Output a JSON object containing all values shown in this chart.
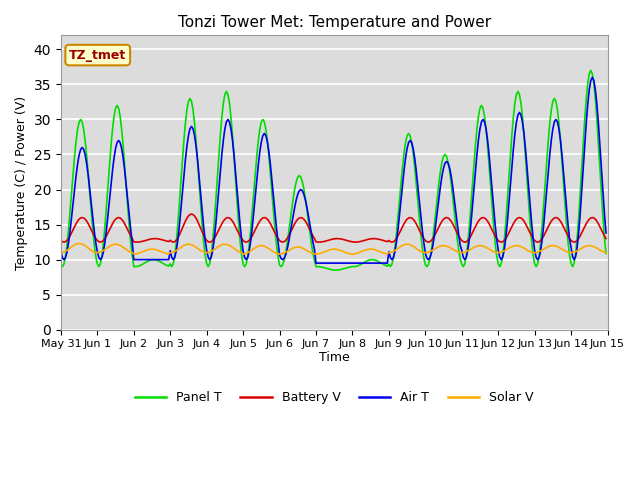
{
  "title": "Tonzi Tower Met: Temperature and Power",
  "ylabel": "Temperature (C) / Power (V)",
  "xlabel": "Time",
  "ylim": [
    0,
    42
  ],
  "yticks": [
    0,
    5,
    10,
    15,
    20,
    25,
    30,
    35,
    40
  ],
  "bg_color": "#dcdcdc",
  "fig_color": "#ffffff",
  "label_box_text": "TZ_tmet",
  "label_box_facecolor": "#ffffcc",
  "label_box_edgecolor": "#cc8800",
  "legend_labels": [
    "Panel T",
    "Battery V",
    "Air T",
    "Solar V"
  ],
  "line_colors": [
    "#00dd00",
    "#dd0000",
    "#0000ee",
    "#ffaa00"
  ],
  "line_width": 1.2,
  "xtick_labels": [
    "May 31",
    "Jun 1",
    "Jun 2",
    "Jun 3",
    "Jun 4",
    "Jun 5",
    "Jun 6",
    "Jun 7",
    "Jun 8",
    "Jun 9",
    "Jun 10",
    "Jun 11",
    "Jun 12",
    "Jun 13",
    "Jun 14",
    "Jun 15"
  ],
  "xtick_positions": [
    0,
    1,
    2,
    3,
    4,
    5,
    6,
    7,
    8,
    9,
    10,
    11,
    12,
    13,
    14,
    15
  ],
  "panel_peaks": [
    30,
    32,
    10,
    33,
    34,
    30,
    22,
    8.5,
    10,
    28,
    25,
    32,
    34,
    33,
    37,
    39
  ],
  "panel_mins": [
    9,
    9,
    9,
    9,
    9,
    9,
    9,
    9,
    9,
    9,
    9,
    9,
    9,
    9,
    9,
    9
  ],
  "air_peaks": [
    26,
    27,
    10,
    29,
    30,
    28,
    20,
    9.5,
    9.5,
    27,
    24,
    30,
    31,
    30,
    36,
    35
  ],
  "air_mins": [
    10,
    10,
    10,
    10,
    10,
    10,
    10,
    9.5,
    9.5,
    10,
    10,
    10,
    10,
    10,
    10,
    10
  ],
  "batt_peaks": [
    16,
    16,
    13,
    16.5,
    16,
    16,
    16,
    13,
    13,
    16,
    16,
    16,
    16,
    16,
    16,
    16
  ],
  "batt_mins": [
    12.5,
    12.5,
    12.5,
    12.5,
    12.5,
    12.5,
    12.5,
    12.5,
    12.5,
    12.5,
    12.5,
    12.5,
    12.5,
    12.5,
    12.5,
    12.5
  ],
  "solar_peaks": [
    12.3,
    12.2,
    11.5,
    12.2,
    12.2,
    12.0,
    11.8,
    11.5,
    11.5,
    12.2,
    12.0,
    12.0,
    12.0,
    12.0,
    12.0,
    12.0
  ],
  "solar_mins": [
    11.0,
    11.0,
    10.8,
    11.0,
    11.0,
    10.8,
    10.8,
    10.8,
    10.8,
    11.0,
    11.0,
    11.0,
    11.0,
    11.0,
    11.0,
    11.0
  ]
}
